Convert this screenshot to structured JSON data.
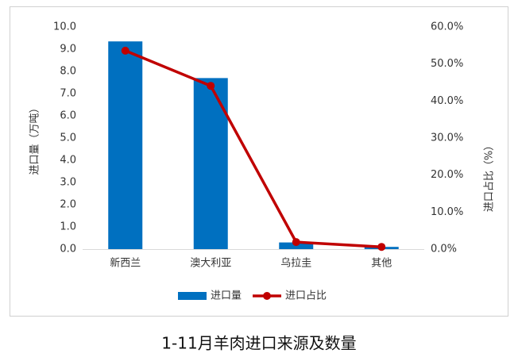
{
  "chart_data": {
    "type": "bar-line",
    "title": "1-11月羊肉进口来源及数量",
    "y_label": "进口量（万吨）",
    "y2_label": "进口占比（%）",
    "categories": [
      "新西兰",
      "澳大利亚",
      "乌拉圭",
      "其他"
    ],
    "series": [
      {
        "name": "进口量",
        "type": "bar",
        "color": "#0070c0",
        "values": [
          9.35,
          7.7,
          0.3,
          0.1
        ]
      },
      {
        "name": "进口占比",
        "type": "line",
        "axis": "y2",
        "color": "#c00000",
        "values": [
          53.6,
          44.1,
          1.9,
          0.6
        ]
      }
    ],
    "ylim": [
      0,
      10
    ],
    "yticks": [
      {
        "value": 0,
        "label": "0.0"
      },
      {
        "value": 1,
        "label": "1.0"
      },
      {
        "value": 2,
        "label": "2.0"
      },
      {
        "value": 3,
        "label": "3.0"
      },
      {
        "value": 4,
        "label": "4.0"
      },
      {
        "value": 5,
        "label": "5.0"
      },
      {
        "value": 6,
        "label": "6.0"
      },
      {
        "value": 7,
        "label": "7.0"
      },
      {
        "value": 8,
        "label": "8.0"
      },
      {
        "value": 9,
        "label": "9.0"
      },
      {
        "value": 10,
        "label": "10.0"
      }
    ],
    "y2lim": [
      0,
      60
    ],
    "y2ticks": [
      {
        "value": 0,
        "label": "0.0%"
      },
      {
        "value": 10,
        "label": "10.0%"
      },
      {
        "value": 20,
        "label": "20.0%"
      },
      {
        "value": 30,
        "label": "30.0%"
      },
      {
        "value": 40,
        "label": "40.0%"
      },
      {
        "value": 50,
        "label": "50.0%"
      },
      {
        "value": 60,
        "label": "60.0%"
      }
    ],
    "legend": "bottom"
  }
}
